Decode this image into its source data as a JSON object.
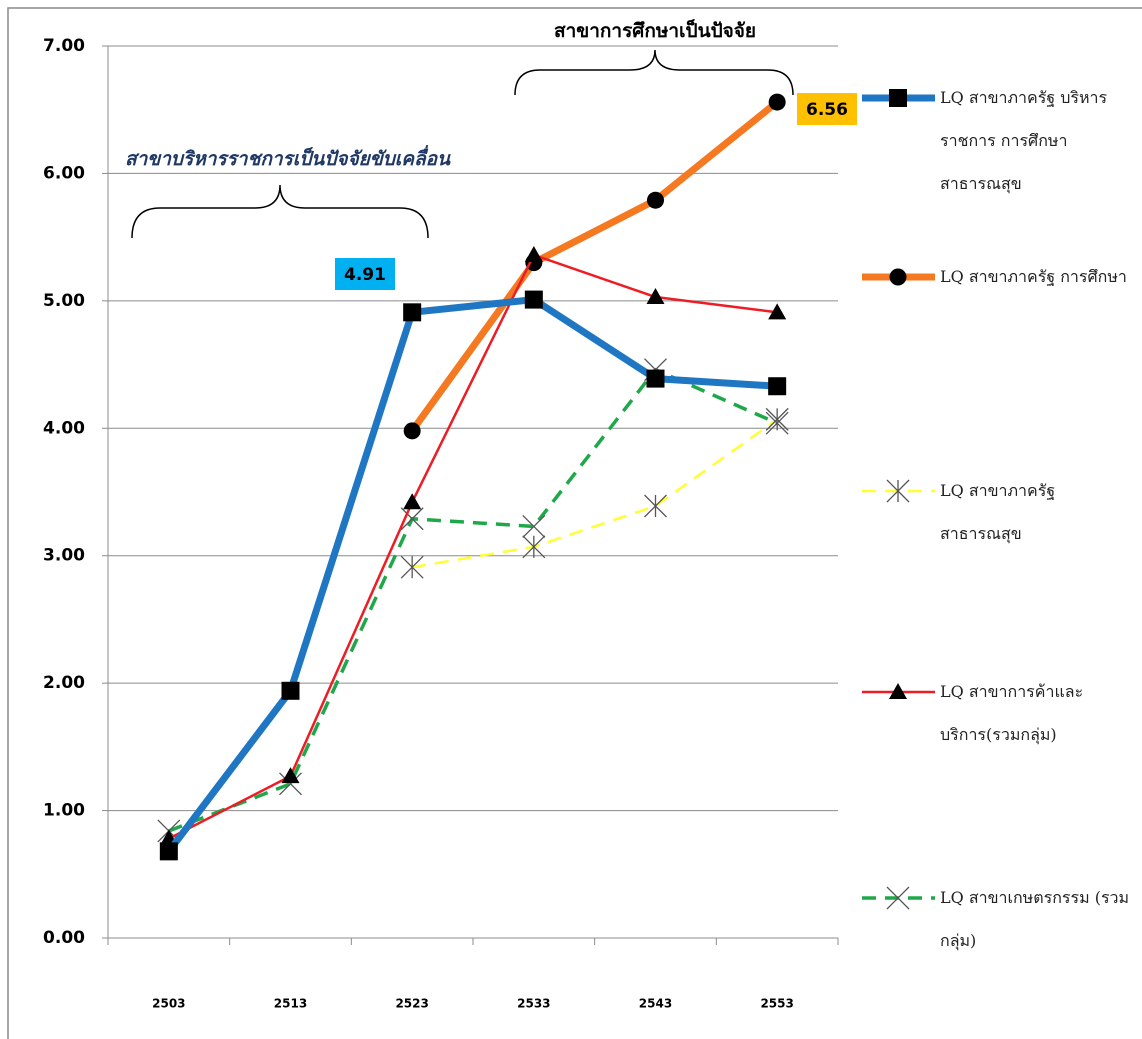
{
  "chart_data": {
    "type": "line",
    "annotations": [
      "สาขาบริหารราชการเป็นปัจจัยขับเคลื่อน",
      "สาขาการศึกษาเป็นปัจจัย"
    ],
    "categories": [
      "2503",
      "2513",
      "2523",
      "2533",
      "2543",
      "2553"
    ],
    "series": [
      {
        "name": "LQ สาขาภาครัฐ บริหารราชการ การศึกษา สาธารณสุข",
        "color": "#1f77c4",
        "marker": "square",
        "line_style": "solid",
        "values": [
          0.68,
          1.94,
          4.91,
          5.01,
          4.39,
          4.33
        ]
      },
      {
        "name": "LQ สาขาภาครัฐ การศึกษา",
        "color": "#f47920",
        "marker": "circle",
        "line_style": "solid",
        "values": [
          null,
          null,
          3.98,
          5.3,
          5.79,
          6.56
        ]
      },
      {
        "name": "LQ สาขาภาครัฐ สาธารณสุข",
        "color": "#ffff33",
        "marker": "star",
        "line_style": "dashed",
        "values": [
          null,
          null,
          2.91,
          3.07,
          3.39,
          4.07
        ]
      },
      {
        "name": "LQ สาขาการค้าและบริการ(รวมกลุ่ม)",
        "color": "#ee1c24",
        "marker": "triangle",
        "line_style": "solid",
        "values": [
          0.78,
          1.27,
          3.42,
          5.36,
          5.03,
          4.91
        ]
      },
      {
        "name": "LQ สาขาเกษตรกรรม (รวมกลุ่ม)",
        "color": "#1fa84a",
        "marker": "x",
        "line_style": "dashed",
        "values": [
          0.84,
          1.21,
          3.29,
          3.23,
          4.46,
          4.04
        ]
      }
    ],
    "ylim": [
      0,
      7
    ],
    "yticks": [
      {
        "value": 0,
        "label": "0.00"
      },
      {
        "value": 1,
        "label": "1.00"
      },
      {
        "value": 2,
        "label": "2.00"
      },
      {
        "value": 3,
        "label": "3.00"
      },
      {
        "value": 4,
        "label": "4.00"
      },
      {
        "value": 5,
        "label": "5.00"
      },
      {
        "value": 6,
        "label": "6.00"
      },
      {
        "value": 7,
        "label": "7.00"
      }
    ],
    "grid": true
  }
}
